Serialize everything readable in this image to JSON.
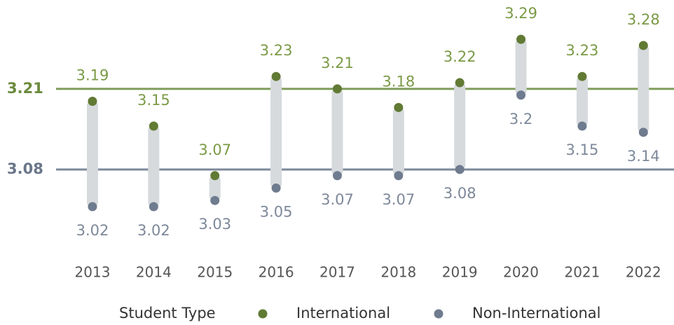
{
  "chart_data": {
    "type": "dumbbell",
    "categories": [
      "2013",
      "2014",
      "2015",
      "2016",
      "2017",
      "2018",
      "2019",
      "2020",
      "2021",
      "2022"
    ],
    "series": [
      {
        "name": "International",
        "color": "#617a34",
        "label_color": "#7a9a45",
        "values": [
          3.19,
          3.15,
          3.07,
          3.23,
          3.21,
          3.18,
          3.22,
          3.29,
          3.23,
          3.28
        ]
      },
      {
        "name": "Non-International",
        "color": "#6f7b8e",
        "label_color": "#7d8899",
        "values": [
          3.02,
          3.02,
          3.03,
          3.05,
          3.07,
          3.07,
          3.08,
          3.2,
          3.15,
          3.14
        ]
      }
    ],
    "reference_lines": [
      {
        "value": 3.21,
        "color": "#7f9c5a",
        "label_color": "#6b8a3c"
      },
      {
        "value": 3.08,
        "color": "#7d889a",
        "label_color": "#6a7689"
      }
    ],
    "legend_title": "Student Type",
    "bar_color": "#d6dadd",
    "ylim": [
      2.95,
      3.35
    ]
  }
}
